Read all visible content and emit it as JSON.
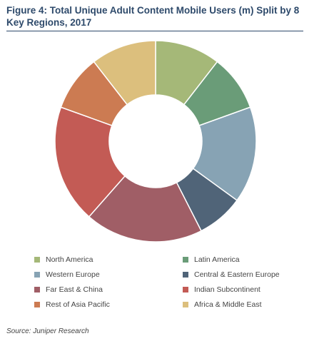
{
  "title": "Figure 4: Total Unique Adult Content Mobile Users (m) Split by 8 Key Regions, 2017",
  "source": "Source: Juniper Research",
  "chart_data": {
    "type": "pie",
    "donut": true,
    "title": "Figure 4: Total Unique Adult Content Mobile Users (m) Split by 8 Key Regions, 2017",
    "legend_position": "bottom",
    "categories": [
      "North America",
      "Latin America",
      "Western Europe",
      "Central & Eastern Europe",
      "Far East & China",
      "Indian Subcontinent",
      "Rest of Asia Pacific",
      "Africa & Middle East"
    ],
    "values": [
      10.5,
      9.0,
      15.5,
      7.5,
      19.0,
      19.0,
      9.0,
      10.5
    ],
    "colors": [
      "#a5b878",
      "#6a9c78",
      "#87a3b4",
      "#506478",
      "#a05e66",
      "#c35b55",
      "#cc7b52",
      "#dcbf7d"
    ]
  }
}
